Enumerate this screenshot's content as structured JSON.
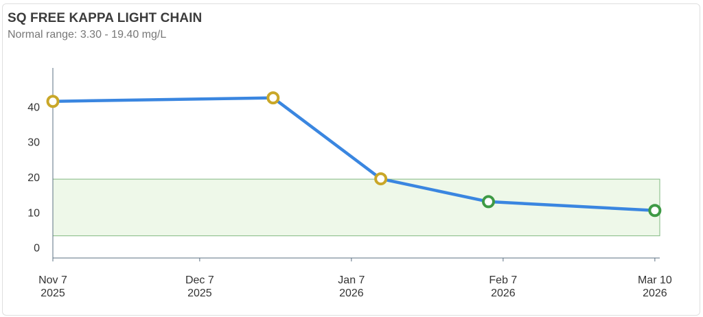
{
  "header": {
    "title": "SQ FREE KAPPA LIGHT CHAIN",
    "subtitle": "Normal range: 3.30 - 19.40 mg/L"
  },
  "colors": {
    "line": "#3a86e0",
    "abnormal_marker": "#c9a728",
    "normal_marker": "#3e9a45",
    "normal_band_fill": "#eef8e9",
    "normal_band_stroke": "#7fb77f",
    "axis": "#5a6f80"
  },
  "chart_data": {
    "type": "line",
    "normal_range": [
      3.3,
      19.4
    ],
    "ylim": [
      -3,
      51
    ],
    "xlim": [
      "2025-11-07",
      "2026-03-11"
    ],
    "y_ticks": [
      0,
      10,
      20,
      30,
      40
    ],
    "x_ticks": [
      {
        "date": "2025-11-07",
        "label_line1": "Nov 7",
        "label_line2": "2025"
      },
      {
        "date": "2025-12-07",
        "label_line1": "Dec 7",
        "label_line2": "2025"
      },
      {
        "date": "2026-01-07",
        "label_line1": "Jan 7",
        "label_line2": "2026"
      },
      {
        "date": "2026-02-07",
        "label_line1": "Feb 7",
        "label_line2": "2026"
      },
      {
        "date": "2026-03-10",
        "label_line1": "Mar 10",
        "label_line2": "2026"
      }
    ],
    "points": [
      {
        "x": "2025-11-07",
        "y": 41.5,
        "status": "abnormal"
      },
      {
        "x": "2025-12-22",
        "y": 42.5,
        "status": "abnormal"
      },
      {
        "x": "2026-01-13",
        "y": 19.5,
        "status": "abnormal"
      },
      {
        "x": "2026-02-04",
        "y": 13.0,
        "status": "normal"
      },
      {
        "x": "2026-03-10",
        "y": 10.5,
        "status": "normal"
      }
    ]
  }
}
